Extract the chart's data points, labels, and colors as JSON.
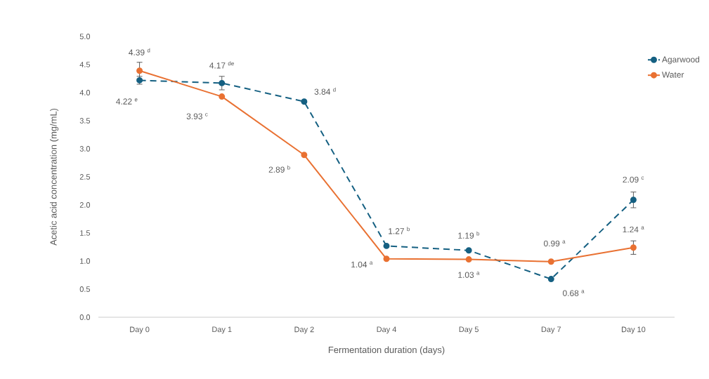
{
  "chart_data": {
    "type": "line",
    "xlabel": "Fermentation duration (days)",
    "ylabel": "Acetic acid concentration (mg/mL)",
    "categories": [
      "Day 0",
      "Day 1",
      "Day 2",
      "Day 4",
      "Day 5",
      "Day 7",
      "Day 10"
    ],
    "series": [
      {
        "name": "Agarwood",
        "color": "#156082",
        "line_style": "dashed",
        "values": [
          4.22,
          4.17,
          3.84,
          1.27,
          1.19,
          0.68,
          2.09
        ],
        "errors": [
          0.07,
          0.12,
          null,
          null,
          null,
          null,
          0.14
        ],
        "value_labels": [
          "4.22 $^{e}$",
          "4.17 $^{de}$",
          "3.84 $^{d}$",
          "1.27 $^{b}$",
          "1.19 $^{b}$",
          "0.68 $^{a}$",
          "2.09 $^{c}$"
        ]
      },
      {
        "name": "Water",
        "color": "#e97132",
        "line_style": "solid",
        "values": [
          4.39,
          3.93,
          2.89,
          1.04,
          1.03,
          0.99,
          1.24
        ],
        "errors": [
          0.15,
          null,
          null,
          null,
          null,
          null,
          0.12
        ],
        "value_labels": [
          "4.39 $^{d}$",
          "3.93 $^{c}$",
          "2.89 $^{b}$",
          "1.04 $^{a}$",
          "1.03 $^{a}$",
          "0.99 $^{a}$",
          "1.24 $^{a}$"
        ]
      }
    ],
    "ylim": [
      0,
      5
    ],
    "yticks": [
      {
        "value": 0,
        "label": "0.0"
      },
      0.5,
      {
        "value": 1,
        "label": "1.0"
      },
      1.5,
      {
        "value": 2,
        "label": "2.0"
      },
      2.5,
      {
        "value": 3,
        "label": "3.0"
      },
      3.5,
      {
        "value": 4,
        "label": "4.0"
      },
      4.5,
      {
        "value": 5,
        "label": "5.0"
      }
    ],
    "marker": "circle",
    "grid": false,
    "legend": "top right"
  }
}
